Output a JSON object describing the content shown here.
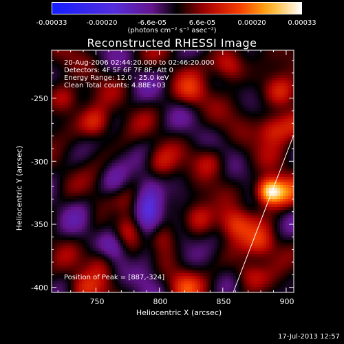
{
  "chart_data": {
    "type": "heatmap",
    "title": "Reconstructed RHESSI Image",
    "xlabel": "Heliocentric X (arcsec)",
    "ylabel": "Heliocentric Y (arcsec)",
    "xlim": [
      715,
      906
    ],
    "ylim": [
      -404,
      -212
    ],
    "x_ticks": [
      "750",
      "800",
      "850",
      "900"
    ],
    "y_ticks": [
      "-250",
      "-300",
      "-350",
      "-400"
    ],
    "colorbar": {
      "ticks": [
        "-0.00033",
        "-0.00020",
        "-6.6e-05",
        "6.6e-05",
        "0.00020",
        "0.00033"
      ],
      "range": [
        -0.00033,
        0.00033
      ],
      "units": "(photons cm⁻² s⁻¹ asec⁻²)"
    },
    "annotations": {
      "time": "20-Aug-2006 02:44:20.000 to 02:46:20.000",
      "detectors": "Detectors: 4F 5F 6F 7F 8F, Att 0",
      "energy": "Energy Range: 12.0 - 25.0 keV",
      "clean": "Clean     Total counts: 4.88E+03",
      "peak": "Position of Peak = [887,-324]"
    },
    "peak": [
      887,
      -324
    ]
  },
  "footer": {
    "timestamp": "17-Jul-2013 12:57"
  },
  "colors": {
    "background": "#000000",
    "text": "#ffffff"
  }
}
